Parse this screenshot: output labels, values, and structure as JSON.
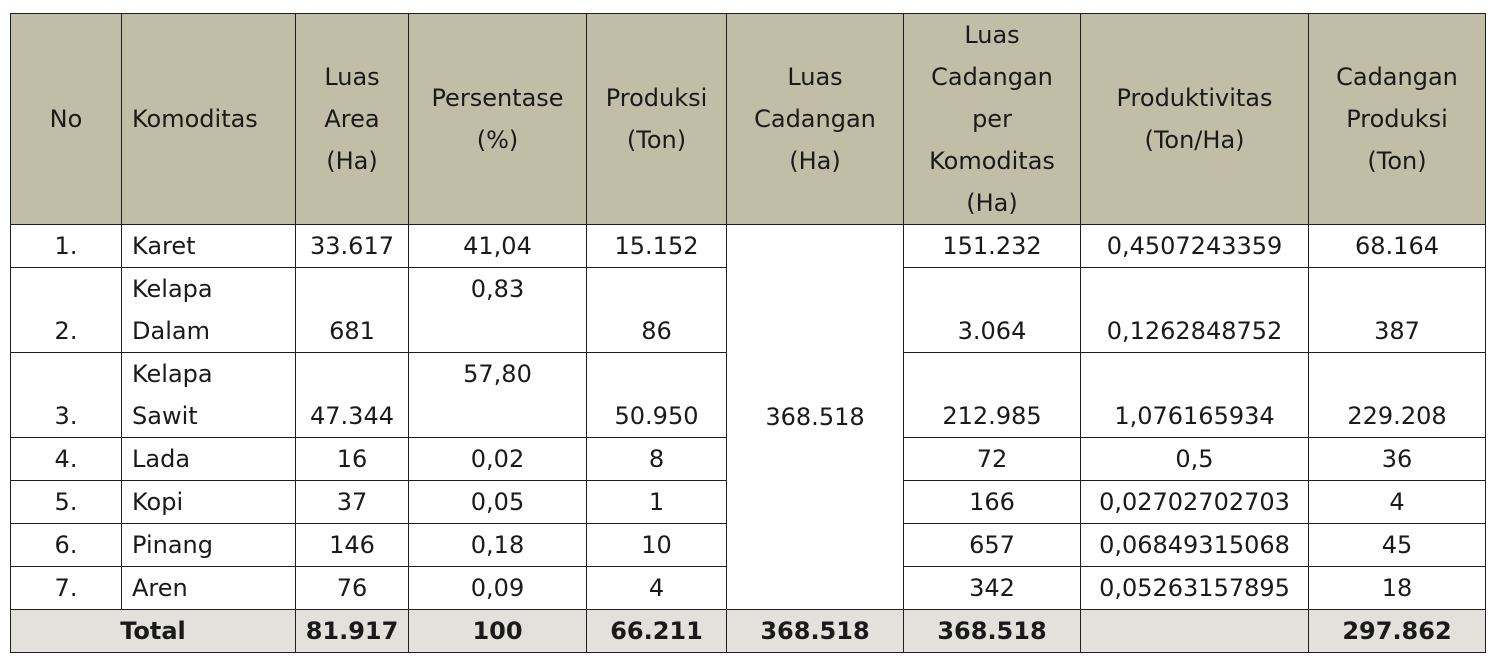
{
  "headers": {
    "no": "No",
    "komoditas": "Komoditas",
    "luas_area": [
      "Luas",
      "Area",
      "(Ha)"
    ],
    "persentase": [
      "Persentase",
      "(%)"
    ],
    "produksi": [
      "Produksi",
      "(Ton)"
    ],
    "luas_cadangan": [
      "Luas",
      "Cadangan",
      "(Ha)"
    ],
    "luas_cadangan_per_komoditas": [
      "Luas",
      "Cadangan",
      "per",
      "Komoditas",
      "(Ha)"
    ],
    "produktivitas": [
      "Produktivitas",
      "(Ton/Ha)"
    ],
    "cadangan_produksi": [
      "Cadangan",
      "Produksi",
      "(Ton)"
    ]
  },
  "rows": [
    {
      "no": "1.",
      "komoditas": [
        "Karet"
      ],
      "luas_area": "33.617",
      "persentase": "41,04",
      "produksi": "15.152",
      "luas_cadangan_komoditas": "151.232",
      "produktivitas": "0,4507243359",
      "cadangan_produksi": "68.164"
    },
    {
      "no": "2.",
      "komoditas": [
        "Kelapa",
        "Dalam"
      ],
      "luas_area": "681",
      "persentase": "0,83",
      "produksi": "86",
      "luas_cadangan_komoditas": "3.064",
      "produktivitas": "0,1262848752",
      "cadangan_produksi": "387"
    },
    {
      "no": "3.",
      "komoditas": [
        "Kelapa",
        "Sawit"
      ],
      "luas_area": "47.344",
      "persentase": "57,80",
      "produksi": "50.950",
      "luas_cadangan_komoditas": "212.985",
      "produktivitas": "1,076165934",
      "cadangan_produksi": "229.208"
    },
    {
      "no": "4.",
      "komoditas": [
        "Lada"
      ],
      "luas_area": "16",
      "persentase": "0,02",
      "produksi": "8",
      "luas_cadangan_komoditas": "72",
      "produktivitas": "0,5",
      "cadangan_produksi": "36"
    },
    {
      "no": "5.",
      "komoditas": [
        "Kopi"
      ],
      "luas_area": "37",
      "persentase": "0,05",
      "produksi": "1",
      "luas_cadangan_komoditas": "166",
      "produktivitas": "0,02702702703",
      "cadangan_produksi": "4"
    },
    {
      "no": "6.",
      "komoditas": [
        "Pinang"
      ],
      "luas_area": "146",
      "persentase": "0,18",
      "produksi": "10",
      "luas_cadangan_komoditas": "657",
      "produktivitas": "0,06849315068",
      "cadangan_produksi": "45"
    },
    {
      "no": "7.",
      "komoditas": [
        "Aren"
      ],
      "luas_area": "76",
      "persentase": "0,09",
      "produksi": "4",
      "luas_cadangan_komoditas": "342",
      "produktivitas": "0,05263157895",
      "cadangan_produksi": "18"
    }
  ],
  "luas_cadangan_merged": "368.518",
  "total": {
    "label": "Total",
    "luas_area": "81.917",
    "persentase": "100",
    "produksi": "66.211",
    "luas_cadangan": "368.518",
    "luas_cadangan_komoditas": "368.518",
    "produktivitas": "",
    "cadangan_produksi": "297.862"
  },
  "colors": {
    "header_bg": "#c2bda6",
    "total_bg": "#e2e1dc",
    "border": "#1f1f1f"
  }
}
